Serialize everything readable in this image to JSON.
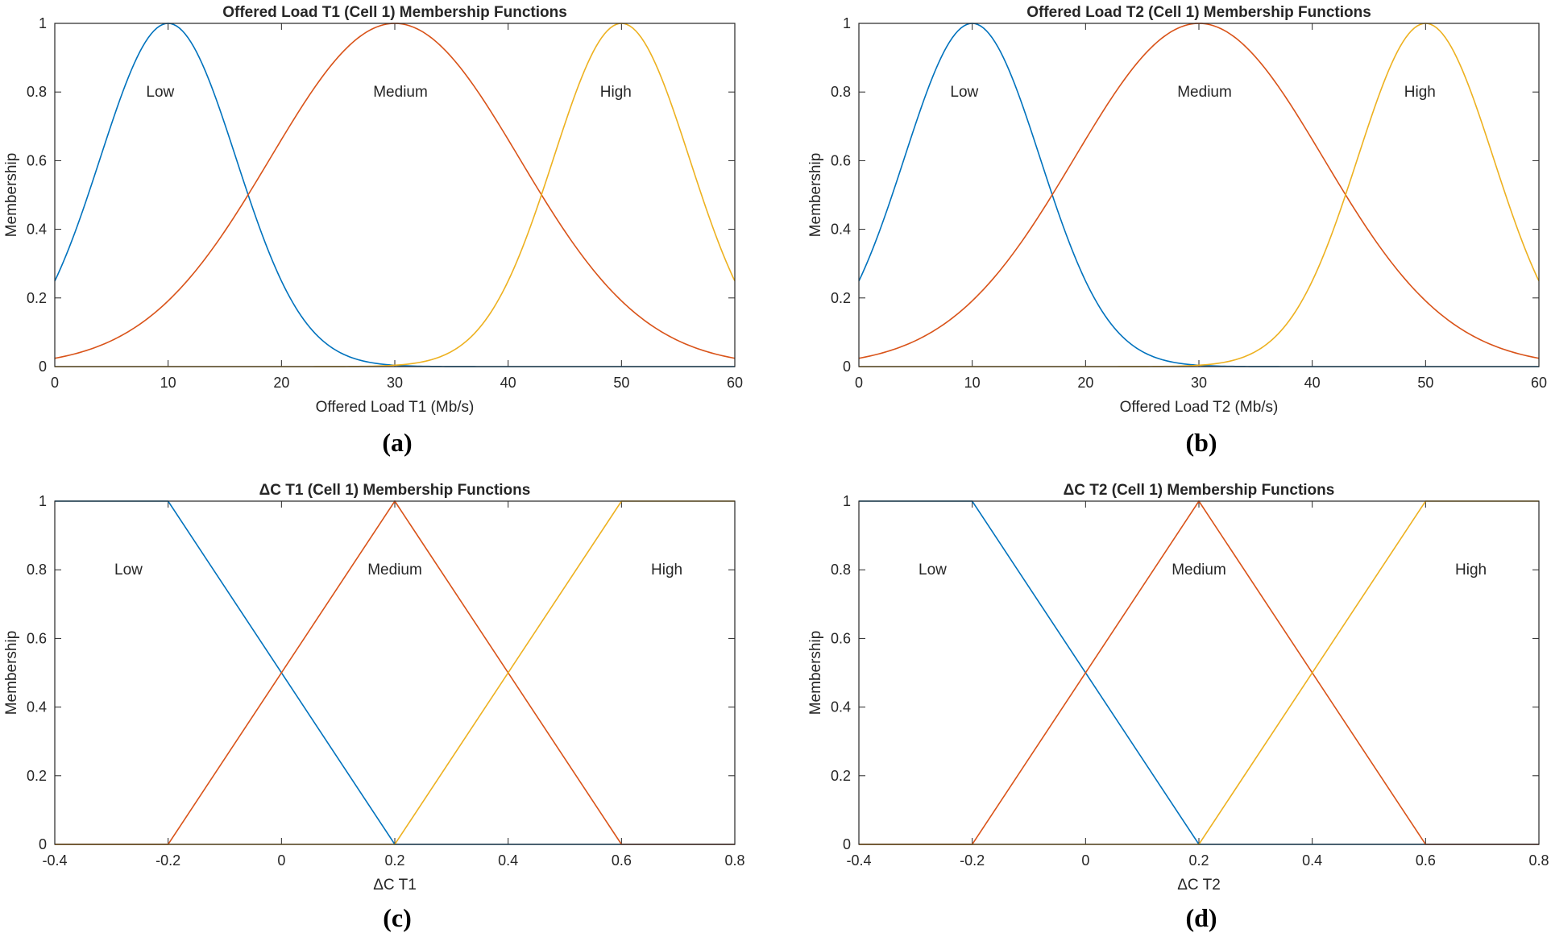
{
  "colors": {
    "low": "#0072BD",
    "medium": "#D95319",
    "high": "#EDB120",
    "axis": "#262626"
  },
  "chart_data": [
    {
      "id": "a",
      "type": "line",
      "title": "Offered Load T1 (Cell 1) Membership Functions",
      "xlabel": "Offered Load T1 (Mb/s)",
      "ylabel": "Membership",
      "caption": "(a)",
      "xlim": [
        0,
        60
      ],
      "ylim": [
        0,
        1
      ],
      "xticks": [
        0,
        10,
        20,
        30,
        40,
        50,
        60
      ],
      "xtick_labels": [
        "0",
        "10",
        "20",
        "30",
        "40",
        "50",
        "60"
      ],
      "yticks": [
        0,
        0.2,
        0.4,
        0.6,
        0.8,
        1
      ],
      "ytick_labels": [
        "0",
        "0.2",
        "0.4",
        "0.6",
        "0.8",
        "1"
      ],
      "series": [
        {
          "name": "Low",
          "shape": "gaussian",
          "center": 10,
          "sigma": 6.0,
          "color_key": "low",
          "label": "Low",
          "label_at": [
            9.3,
            0.8
          ]
        },
        {
          "name": "Medium",
          "shape": "gaussian",
          "center": 30,
          "sigma": 11.0,
          "color_key": "medium",
          "label": "Medium",
          "label_at": [
            30.5,
            0.8
          ]
        },
        {
          "name": "High",
          "shape": "gaussian",
          "center": 50,
          "sigma": 6.0,
          "color_key": "high",
          "label": "High",
          "label_at": [
            49.5,
            0.8
          ]
        }
      ]
    },
    {
      "id": "b",
      "type": "line",
      "title": "Offered Load T2 (Cell 1) Membership Functions",
      "xlabel": "Offered Load T2 (Mb/s)",
      "ylabel": "Membership",
      "caption": "(b)",
      "xlim": [
        0,
        60
      ],
      "ylim": [
        0,
        1
      ],
      "xticks": [
        0,
        10,
        20,
        30,
        40,
        50,
        60
      ],
      "xtick_labels": [
        "0",
        "10",
        "20",
        "30",
        "40",
        "50",
        "60"
      ],
      "yticks": [
        0,
        0.2,
        0.4,
        0.6,
        0.8,
        1
      ],
      "ytick_labels": [
        "0",
        "0.2",
        "0.4",
        "0.6",
        "0.8",
        "1"
      ],
      "series": [
        {
          "name": "Low",
          "shape": "gaussian",
          "center": 10,
          "sigma": 6.0,
          "color_key": "low",
          "label": "Low",
          "label_at": [
            9.3,
            0.8
          ]
        },
        {
          "name": "Medium",
          "shape": "gaussian",
          "center": 30,
          "sigma": 11.0,
          "color_key": "medium",
          "label": "Medium",
          "label_at": [
            30.5,
            0.8
          ]
        },
        {
          "name": "High",
          "shape": "gaussian",
          "center": 50,
          "sigma": 6.0,
          "color_key": "high",
          "label": "High",
          "label_at": [
            49.5,
            0.8
          ]
        }
      ]
    },
    {
      "id": "c",
      "type": "line",
      "title": "ΔC T1 (Cell 1) Membership Functions",
      "xlabel": "ΔC T1",
      "ylabel": "Membership",
      "caption": "(c)",
      "xlim": [
        -0.4,
        0.8
      ],
      "ylim": [
        0,
        1
      ],
      "xticks": [
        -0.4,
        -0.2,
        0,
        0.2,
        0.4,
        0.6,
        0.8
      ],
      "xtick_labels": [
        "-0.4",
        "-0.2",
        "0",
        "0.2",
        "0.4",
        "0.6",
        "0.8"
      ],
      "yticks": [
        0,
        0.2,
        0.4,
        0.6,
        0.8,
        1
      ],
      "ytick_labels": [
        "0",
        "0.2",
        "0.4",
        "0.6",
        "0.8",
        "1"
      ],
      "series": [
        {
          "name": "Low",
          "shape": "polyline",
          "x": [
            -0.4,
            -0.2,
            0.2,
            0.8
          ],
          "y": [
            1,
            1,
            0,
            0
          ],
          "color_key": "low",
          "label": "Low",
          "label_at": [
            -0.27,
            0.8
          ]
        },
        {
          "name": "Medium",
          "shape": "polyline",
          "x": [
            -0.4,
            -0.2,
            0.2,
            0.6,
            0.8
          ],
          "y": [
            0,
            0,
            1,
            0,
            0
          ],
          "color_key": "medium",
          "label": "Medium",
          "label_at": [
            0.2,
            0.8
          ]
        },
        {
          "name": "High",
          "shape": "polyline",
          "x": [
            -0.4,
            0.2,
            0.6,
            0.8
          ],
          "y": [
            0,
            0,
            1,
            1
          ],
          "color_key": "high",
          "label": "High",
          "label_at": [
            0.68,
            0.8
          ]
        }
      ]
    },
    {
      "id": "d",
      "type": "line",
      "title": "ΔC T2 (Cell 1) Membership Functions",
      "xlabel": "ΔC T2",
      "ylabel": "Membership",
      "caption": "(d)",
      "xlim": [
        -0.4,
        0.8
      ],
      "ylim": [
        0,
        1
      ],
      "xticks": [
        -0.4,
        -0.2,
        0,
        0.2,
        0.4,
        0.6,
        0.8
      ],
      "xtick_labels": [
        "-0.4",
        "-0.2",
        "0",
        "0.2",
        "0.4",
        "0.6",
        "0.8"
      ],
      "yticks": [
        0,
        0.2,
        0.4,
        0.6,
        0.8,
        1
      ],
      "ytick_labels": [
        "0",
        "0.2",
        "0.4",
        "0.6",
        "0.8",
        "1"
      ],
      "series": [
        {
          "name": "Low",
          "shape": "polyline",
          "x": [
            -0.4,
            -0.2,
            0.2,
            0.8
          ],
          "y": [
            1,
            1,
            0,
            0
          ],
          "color_key": "low",
          "label": "Low",
          "label_at": [
            -0.27,
            0.8
          ]
        },
        {
          "name": "Medium",
          "shape": "polyline",
          "x": [
            -0.4,
            -0.2,
            0.2,
            0.6,
            0.8
          ],
          "y": [
            0,
            0,
            1,
            0,
            0
          ],
          "color_key": "medium",
          "label": "Medium",
          "label_at": [
            0.2,
            0.8
          ]
        },
        {
          "name": "High",
          "shape": "polyline",
          "x": [
            -0.4,
            0.2,
            0.6,
            0.8
          ],
          "y": [
            0,
            0,
            1,
            1
          ],
          "color_key": "high",
          "label": "High",
          "label_at": [
            0.68,
            0.8
          ]
        }
      ]
    }
  ]
}
